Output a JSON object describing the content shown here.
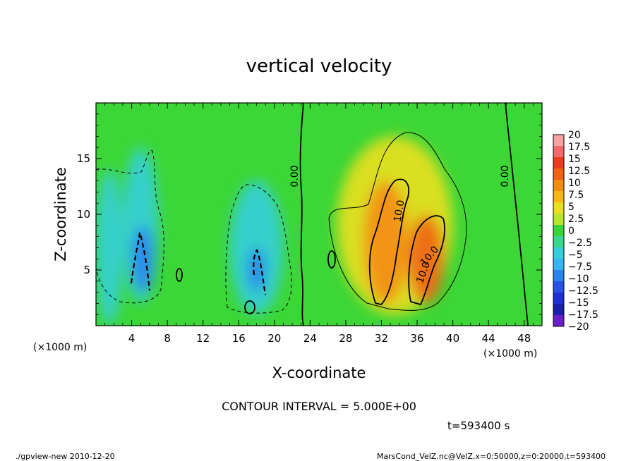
{
  "chart_data": {
    "type": "heatmap",
    "title": "vertical velocity",
    "xlabel": "X-coordinate",
    "ylabel": "Z-coordinate",
    "x_unit_label": "(×1000 m)",
    "y_unit_label": "(×1000 m)",
    "xlim": [
      0,
      50
    ],
    "ylim": [
      0,
      20
    ],
    "x_ticks": [
      4,
      8,
      12,
      16,
      20,
      24,
      28,
      32,
      36,
      40,
      44,
      48
    ],
    "y_ticks": [
      5,
      10,
      15
    ],
    "colorbar": {
      "levels": [
        "20",
        "17.5",
        "15",
        "12.5",
        "10",
        "7.5",
        "5",
        "2.5",
        "0",
        "−2.5",
        "−5",
        "−7.5",
        "−10",
        "−12.5",
        "−15",
        "−17.5",
        "−20"
      ],
      "values": [
        20,
        17.5,
        15,
        12.5,
        10,
        7.5,
        5,
        2.5,
        0,
        -2.5,
        -5,
        -7.5,
        -10,
        -12.5,
        -15,
        -17.5,
        -20
      ],
      "colors": [
        "#f7a3a3",
        "#f26a6a",
        "#ee3a1e",
        "#f06414",
        "#f58c12",
        "#f7b812",
        "#ebe01c",
        "#b8e62a",
        "#36d636",
        "#3ad88e",
        "#33cfdb",
        "#33b6f2",
        "#2a84ee",
        "#2552e8",
        "#1f2fd6",
        "#1b1faa",
        "#6a1fc8"
      ]
    },
    "contour_labels": [
      "0.00",
      "10.0",
      "10.0",
      "10.0",
      "0.00"
    ],
    "cells": [
      {
        "x": [
          0,
          3
        ],
        "z": [
          0,
          14
        ],
        "w": -5
      },
      {
        "x": [
          3,
          7
        ],
        "z": [
          2,
          16
        ],
        "w": -6
      },
      {
        "x": [
          4,
          6.5
        ],
        "z": [
          3,
          9
        ],
        "w": -10
      },
      {
        "x": [
          15,
          21
        ],
        "z": [
          1,
          13
        ],
        "w": -6
      },
      {
        "x": [
          17,
          19
        ],
        "z": [
          3,
          7
        ],
        "w": -10
      },
      {
        "x": [
          27,
          40
        ],
        "z": [
          1,
          17
        ],
        "w": 4
      },
      {
        "x": [
          30,
          35
        ],
        "z": [
          2,
          13
        ],
        "w": 11
      },
      {
        "x": [
          35,
          39
        ],
        "z": [
          2,
          10
        ],
        "w": 13
      }
    ],
    "contour_interval_text": "CONTOUR INTERVAL = 5.000E+00",
    "time_text": "t=593400 s"
  },
  "footer": {
    "left": "./gpview-new  2010-12-20",
    "right": "MarsCond_VelZ.nc@VelZ,x=0:50000,z=0:20000,t=593400"
  }
}
